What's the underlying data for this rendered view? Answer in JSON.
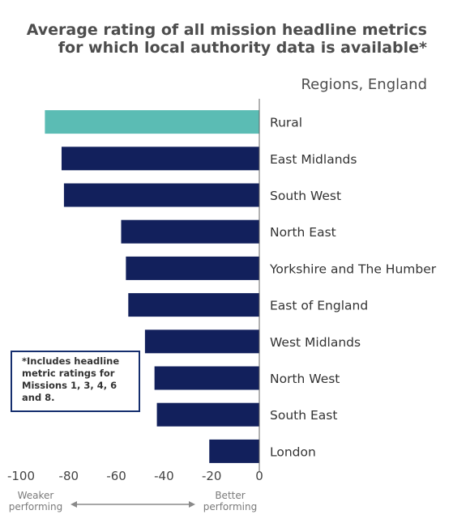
{
  "chart_data": {
    "type": "bar",
    "orientation": "horizontal",
    "title": "Average rating of all mission headline metrics for which local authority data is available*",
    "subtitle": "Regions, England",
    "categories": [
      "Rural",
      "East Midlands",
      "South West",
      "North East",
      "Yorkshire and The Humber",
      "East of England",
      "West Midlands",
      "North West",
      "South East",
      "London"
    ],
    "values": [
      -90,
      -83,
      -82,
      -58,
      -56,
      -55,
      -48,
      -44,
      -43,
      -21
    ],
    "highlight_category": "Rural",
    "colors": {
      "highlight": "#5bbcb4",
      "default": "#12205c",
      "axis": "#666666"
    },
    "xlim": [
      -100,
      0
    ],
    "xticks": [
      -100,
      -80,
      -60,
      -40,
      -20,
      0
    ],
    "grid": false,
    "legend": "none",
    "annotations": {
      "note": "*Includes headline metric ratings for Missions 1, 3, 4, 6 and 8.",
      "left_label": "Weaker performing",
      "right_label": "Better performing"
    }
  }
}
